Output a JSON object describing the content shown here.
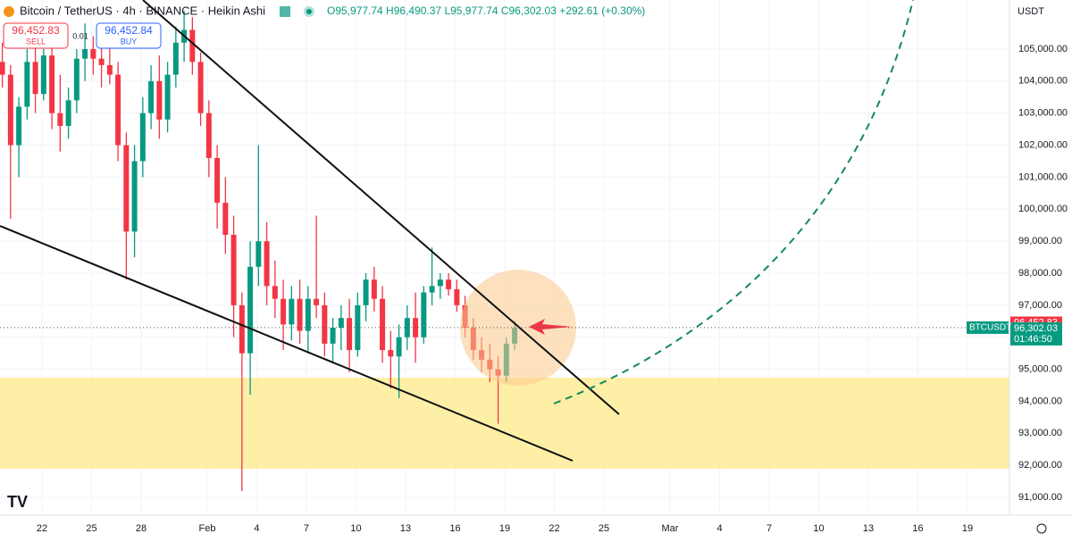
{
  "chart_data": {
    "type": "candlestick",
    "title": "Bitcoin / TetherUS · 4h · BINANCE · Heikin Ashi",
    "ohlc_text": "O95,977.74 H96,490.37 L95,977.74 C96,302.03 +292.61 (+0.30%)",
    "sell_price": "96,452.83",
    "sell_label": "SELL",
    "quantity": "0.01",
    "buy_price": "96,452.84",
    "buy_label": "BUY",
    "currency": "USDT",
    "symbol": "BTCUSDT",
    "last_price_label": "96,302.03",
    "last_price": 96302.03,
    "ask_label": "96,452.83",
    "ask": 96452.83,
    "countdown": "01:46:50",
    "up_color": "#089981",
    "down_color": "#f23645",
    "x": [
      19.6,
      20.1,
      20.6,
      21.1,
      21.6,
      22.1,
      22.6,
      23.1,
      23.6,
      24.1,
      24.6,
      25.1,
      25.6,
      26.1,
      26.6,
      27.1,
      27.6,
      28.1,
      28.6,
      29.1,
      29.6,
      30.1,
      30.6,
      31.1,
      31.6,
      32.1,
      32.6,
      33.1,
      33.6,
      34.1,
      34.6,
      35.1,
      35.6,
      36.1,
      36.6,
      37.1,
      37.6,
      38.1,
      38.6,
      39.1,
      39.6,
      40.1,
      40.6,
      41.1,
      41.6,
      42.1,
      42.6,
      43.1,
      43.6,
      44.1,
      44.6,
      45.1,
      45.6,
      46.1,
      46.6,
      47.1,
      47.6,
      48.1,
      48.6,
      49.1,
      49.6,
      50.1,
      50.6
    ],
    "open": [
      104600,
      104200,
      102000,
      103200,
      104600,
      103600,
      104800,
      103000,
      102600,
      103400,
      104700,
      105000,
      104700,
      104500,
      104200,
      102000,
      99300,
      101500,
      103000,
      104000,
      102800,
      104200,
      105200,
      105600,
      104600,
      103000,
      101600,
      100200,
      99200,
      97000,
      95500,
      98200,
      99000,
      97600,
      97200,
      96400,
      97200,
      96200,
      97200,
      97000,
      95800,
      96300,
      96600,
      95600,
      97000,
      97800,
      97200,
      95600,
      95400,
      96000,
      96600,
      96000,
      97400,
      97600,
      97800,
      97500,
      97000,
      96300,
      95600,
      95300,
      95000,
      94800,
      95800
    ],
    "high": [
      105200,
      104500,
      103500,
      105000,
      105300,
      105000,
      105200,
      104200,
      103800,
      105000,
      105800,
      105400,
      105100,
      105300,
      104600,
      102400,
      102000,
      103500,
      104500,
      104800,
      104600,
      105700,
      106200,
      106000,
      104900,
      103400,
      102000,
      101000,
      99800,
      97400,
      99000,
      102000,
      99600,
      98400,
      97800,
      97600,
      97800,
      97600,
      99800,
      97400,
      96600,
      97000,
      97200,
      97400,
      98000,
      98200,
      97600,
      96200,
      96400,
      97000,
      97400,
      97600,
      98800,
      98000,
      98000,
      97800,
      97300,
      96600,
      96000,
      95800,
      95400,
      96000,
      96500
    ],
    "low": [
      103800,
      99700,
      101000,
      102800,
      103000,
      103400,
      102500,
      101800,
      102200,
      103000,
      104000,
      104200,
      103800,
      103900,
      101500,
      97800,
      98500,
      101000,
      102500,
      102200,
      102400,
      103800,
      104600,
      104200,
      102600,
      101000,
      99400,
      98600,
      96000,
      91200,
      94200,
      97600,
      97000,
      96600,
      95600,
      95900,
      95800,
      95500,
      96600,
      95400,
      95200,
      95600,
      94900,
      95400,
      96500,
      96800,
      95200,
      94400,
      94100,
      95600,
      95200,
      95800,
      97000,
      97200,
      97300,
      96800,
      96000,
      95300,
      94900,
      94600,
      93300,
      94600,
      95600
    ],
    "close": [
      104200,
      102000,
      103200,
      104600,
      103600,
      104800,
      103000,
      102600,
      103400,
      104700,
      105000,
      104700,
      104500,
      104200,
      102000,
      99300,
      101500,
      103000,
      104000,
      102800,
      104200,
      105200,
      105600,
      104600,
      103000,
      101600,
      100200,
      99200,
      97000,
      95500,
      98200,
      99000,
      97600,
      97200,
      96400,
      97200,
      96200,
      97200,
      97000,
      95800,
      96300,
      96600,
      95600,
      97000,
      97800,
      97200,
      95600,
      95400,
      96000,
      96600,
      96000,
      97400,
      97600,
      97800,
      97500,
      97000,
      96300,
      95600,
      95300,
      95000,
      94800,
      95800,
      96300
    ],
    "xlim": [
      19.46,
      80.54
    ],
    "xticks": [
      22,
      25,
      28,
      {
        "value": 32,
        "label": "Feb"
      },
      {
        "value": 35,
        "label": "4"
      },
      {
        "value": 38,
        "label": "7"
      },
      {
        "value": 41,
        "label": "10"
      },
      {
        "value": 44,
        "label": "13"
      },
      {
        "value": 47,
        "label": "16"
      },
      {
        "value": 50,
        "label": "19"
      },
      {
        "value": 53,
        "label": "22"
      },
      {
        "value": 56,
        "label": "25"
      },
      {
        "value": 60,
        "label": "Mar"
      },
      {
        "value": 63,
        "label": "4"
      },
      {
        "value": 66,
        "label": "7"
      },
      {
        "value": 69,
        "label": "10"
      },
      {
        "value": 72,
        "label": "13"
      },
      {
        "value": 75,
        "label": "16"
      },
      {
        "value": 78,
        "label": "19"
      }
    ],
    "ylim": [
      90443,
      106533
    ],
    "yticks": [
      {
        "value": 91000,
        "label": "91,000.00"
      },
      {
        "value": 92000,
        "label": "92,000.00"
      },
      {
        "value": 93000,
        "label": "93,000.00"
      },
      {
        "value": 94000,
        "label": "94,000.00"
      },
      {
        "value": 95000,
        "label": "95,000.00"
      },
      {
        "value": 96000,
        "label": "96,000.00"
      },
      {
        "value": 97000,
        "label": "97,000.00"
      },
      {
        "value": 98000,
        "label": "98,000.00"
      },
      {
        "value": 99000,
        "label": "99,000.00"
      },
      {
        "value": 100000,
        "label": "100,000.00"
      },
      {
        "value": 101000,
        "label": "101,000.00"
      },
      {
        "value": 102000,
        "label": "102,000.00"
      },
      {
        "value": 103000,
        "label": "103,000.00"
      },
      {
        "value": 104000,
        "label": "104,000.00"
      },
      {
        "value": 105000,
        "label": "105,000.00"
      }
    ],
    "grid": true
  }
}
